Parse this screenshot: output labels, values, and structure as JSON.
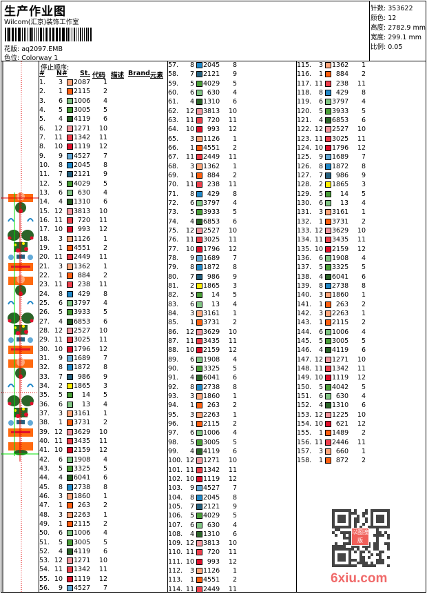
{
  "header": {
    "title": "生产作业图",
    "company": "Wilcom(汇京)装饰工作室",
    "pattern_label": "花版:",
    "pattern": "aq2097.EMB",
    "colorway_label": "色位:",
    "colorway": "Colorway 1"
  },
  "info": [
    {
      "label": "针数:",
      "value": "353622"
    },
    {
      "label": "颜色:",
      "value": "12"
    },
    {
      "label": "高度:",
      "value": "2782.9 mm"
    },
    {
      "label": "宽度:",
      "value": "299.1 mm"
    },
    {
      "label": "比例:",
      "value": "0.05"
    }
  ],
  "table": {
    "stop_order_label": "停止顺序:",
    "columns": [
      "#",
      "N#",
      "St.",
      "代码",
      "描述",
      "Brand",
      "元素"
    ]
  },
  "palette": {
    "1": "#ff5f0f",
    "2": "#ffee00",
    "3": "#ffa57a",
    "4": "#2b6428",
    "5": "#4a9e38",
    "6": "#80c483",
    "7": "#25607e",
    "8": "#2088c8",
    "9": "#62aad8",
    "10": "#e0102c",
    "11": "#ee3f4c",
    "12": "#f4949c"
  },
  "rows": [
    [
      "1.",
      3,
      "2087",
      1
    ],
    [
      "2.",
      1,
      "2115",
      2
    ],
    [
      "3.",
      6,
      "1006",
      4
    ],
    [
      "4.",
      5,
      "3005",
      5
    ],
    [
      "5.",
      4,
      "4119",
      6
    ],
    [
      "6.",
      12,
      "1271",
      10
    ],
    [
      "7.",
      11,
      "1342",
      11
    ],
    [
      "8.",
      10,
      "1119",
      12
    ],
    [
      "9.",
      9,
      "4527",
      7
    ],
    [
      "10.",
      8,
      "2045",
      8
    ],
    [
      "11.",
      7,
      "2121",
      9
    ],
    [
      "12.",
      5,
      "4029",
      5
    ],
    [
      "13.",
      6,
      "630",
      4
    ],
    [
      "14.",
      4,
      "1310",
      6
    ],
    [
      "15.",
      12,
      "3813",
      10
    ],
    [
      "16.",
      11,
      "720",
      11
    ],
    [
      "17.",
      10,
      "993",
      12
    ],
    [
      "18.",
      3,
      "1126",
      1
    ],
    [
      "19.",
      1,
      "4551",
      2
    ],
    [
      "20.",
      11,
      "2449",
      11
    ],
    [
      "21.",
      3,
      "1362",
      1
    ],
    [
      "22.",
      1,
      "884",
      2
    ],
    [
      "23.",
      11,
      "238",
      11
    ],
    [
      "24.",
      8,
      "429",
      8
    ],
    [
      "25.",
      6,
      "3797",
      4
    ],
    [
      "26.",
      5,
      "3933",
      5
    ],
    [
      "27.",
      4,
      "6853",
      6
    ],
    [
      "28.",
      12,
      "2527",
      10
    ],
    [
      "29.",
      11,
      "3025",
      11
    ],
    [
      "30.",
      10,
      "1796",
      12
    ],
    [
      "31.",
      9,
      "1689",
      7
    ],
    [
      "32.",
      8,
      "1872",
      8
    ],
    [
      "33.",
      7,
      "986",
      9
    ],
    [
      "34.",
      2,
      "1865",
      3
    ],
    [
      "35.",
      5,
      "14",
      5
    ],
    [
      "36.",
      6,
      "13",
      4
    ],
    [
      "37.",
      3,
      "3161",
      1
    ],
    [
      "38.",
      1,
      "3731",
      2
    ],
    [
      "39.",
      12,
      "3629",
      10
    ],
    [
      "40.",
      11,
      "3435",
      11
    ],
    [
      "41.",
      10,
      "2159",
      12
    ],
    [
      "42.",
      6,
      "1908",
      4
    ],
    [
      "43.",
      5,
      "3325",
      5
    ],
    [
      "44.",
      4,
      "6041",
      6
    ],
    [
      "45.",
      8,
      "2738",
      8
    ],
    [
      "46.",
      3,
      "1860",
      1
    ],
    [
      "47.",
      1,
      "263",
      2
    ],
    [
      "48.",
      3,
      "2263",
      1
    ],
    [
      "49.",
      1,
      "2115",
      2
    ],
    [
      "50.",
      6,
      "1006",
      4
    ],
    [
      "51.",
      5,
      "3005",
      5
    ],
    [
      "52.",
      4,
      "4119",
      6
    ],
    [
      "53.",
      12,
      "1271",
      10
    ],
    [
      "54.",
      11,
      "1342",
      11
    ],
    [
      "55.",
      10,
      "1119",
      12
    ],
    [
      "56.",
      9,
      "4527",
      7
    ],
    [
      "57.",
      8,
      "2045",
      8
    ],
    [
      "58.",
      7,
      "2121",
      9
    ],
    [
      "59.",
      5,
      "4029",
      5
    ],
    [
      "60.",
      6,
      "630",
      4
    ],
    [
      "61.",
      4,
      "1310",
      6
    ],
    [
      "62.",
      12,
      "3813",
      10
    ],
    [
      "63.",
      11,
      "720",
      11
    ],
    [
      "64.",
      10,
      "993",
      12
    ],
    [
      "65.",
      3,
      "1126",
      1
    ],
    [
      "66.",
      1,
      "4551",
      2
    ],
    [
      "67.",
      11,
      "2449",
      11
    ],
    [
      "68.",
      3,
      "1362",
      1
    ],
    [
      "69.",
      1,
      "884",
      2
    ],
    [
      "70.",
      11,
      "238",
      11
    ],
    [
      "71.",
      8,
      "429",
      8
    ],
    [
      "72.",
      6,
      "3797",
      4
    ],
    [
      "73.",
      5,
      "3933",
      5
    ],
    [
      "74.",
      4,
      "6853",
      6
    ],
    [
      "75.",
      12,
      "2527",
      10
    ],
    [
      "76.",
      11,
      "3025",
      11
    ],
    [
      "77.",
      10,
      "1796",
      12
    ],
    [
      "78.",
      9,
      "1689",
      7
    ],
    [
      "79.",
      8,
      "1872",
      8
    ],
    [
      "80.",
      7,
      "986",
      9
    ],
    [
      "81.",
      2,
      "1865",
      3
    ],
    [
      "82.",
      5,
      "14",
      5
    ],
    [
      "83.",
      6,
      "13",
      4
    ],
    [
      "84.",
      3,
      "3161",
      1
    ],
    [
      "85.",
      1,
      "3731",
      2
    ],
    [
      "86.",
      12,
      "3629",
      10
    ],
    [
      "87.",
      11,
      "3435",
      11
    ],
    [
      "88.",
      10,
      "2159",
      12
    ],
    [
      "89.",
      6,
      "1908",
      4
    ],
    [
      "90.",
      5,
      "3325",
      5
    ],
    [
      "91.",
      4,
      "6041",
      6
    ],
    [
      "92.",
      8,
      "2738",
      8
    ],
    [
      "93.",
      3,
      "1860",
      1
    ],
    [
      "94.",
      1,
      "263",
      2
    ],
    [
      "95.",
      3,
      "2263",
      1
    ],
    [
      "96.",
      1,
      "2115",
      2
    ],
    [
      "97.",
      6,
      "1006",
      4
    ],
    [
      "98.",
      5,
      "3005",
      5
    ],
    [
      "99.",
      4,
      "4119",
      6
    ],
    [
      "100.",
      12,
      "1271",
      10
    ],
    [
      "101.",
      11,
      "1342",
      11
    ],
    [
      "102.",
      10,
      "1119",
      12
    ],
    [
      "103.",
      9,
      "4527",
      7
    ],
    [
      "104.",
      8,
      "2045",
      8
    ],
    [
      "105.",
      7,
      "2121",
      9
    ],
    [
      "106.",
      5,
      "4029",
      5
    ],
    [
      "107.",
      6,
      "630",
      4
    ],
    [
      "108.",
      4,
      "1310",
      6
    ],
    [
      "109.",
      12,
      "3813",
      10
    ],
    [
      "110.",
      11,
      "720",
      11
    ],
    [
      "111.",
      10,
      "993",
      12
    ],
    [
      "112.",
      3,
      "1126",
      1
    ],
    [
      "113.",
      1,
      "4551",
      2
    ],
    [
      "114.",
      11,
      "2449",
      11
    ],
    [
      "115.",
      3,
      "1362",
      1
    ],
    [
      "116.",
      1,
      "884",
      2
    ],
    [
      "117.",
      11,
      "238",
      11
    ],
    [
      "118.",
      8,
      "429",
      8
    ],
    [
      "119.",
      6,
      "3797",
      4
    ],
    [
      "120.",
      5,
      "3933",
      5
    ],
    [
      "121.",
      4,
      "6853",
      6
    ],
    [
      "122.",
      12,
      "2527",
      10
    ],
    [
      "123.",
      11,
      "3025",
      11
    ],
    [
      "124.",
      10,
      "1796",
      12
    ],
    [
      "125.",
      9,
      "1689",
      7
    ],
    [
      "126.",
      8,
      "1872",
      8
    ],
    [
      "127.",
      7,
      "986",
      9
    ],
    [
      "128.",
      2,
      "1865",
      3
    ],
    [
      "129.",
      5,
      "14",
      5
    ],
    [
      "130.",
      6,
      "13",
      4
    ],
    [
      "131.",
      3,
      "3161",
      1
    ],
    [
      "132.",
      1,
      "3731",
      2
    ],
    [
      "133.",
      12,
      "3629",
      10
    ],
    [
      "134.",
      11,
      "3435",
      11
    ],
    [
      "135.",
      10,
      "2159",
      12
    ],
    [
      "136.",
      6,
      "1908",
      4
    ],
    [
      "137.",
      5,
      "3325",
      5
    ],
    [
      "138.",
      4,
      "6041",
      6
    ],
    [
      "139.",
      8,
      "2738",
      8
    ],
    [
      "140.",
      3,
      "1860",
      1
    ],
    [
      "141.",
      1,
      "263",
      2
    ],
    [
      "142.",
      3,
      "2263",
      1
    ],
    [
      "143.",
      1,
      "2115",
      2
    ],
    [
      "144.",
      6,
      "1006",
      4
    ],
    [
      "145.",
      5,
      "3005",
      5
    ],
    [
      "146.",
      4,
      "4119",
      6
    ],
    [
      "147.",
      12,
      "1271",
      10
    ],
    [
      "148.",
      11,
      "1342",
      11
    ],
    [
      "149.",
      10,
      "1119",
      12
    ],
    [
      "150.",
      5,
      "4042",
      5
    ],
    [
      "151.",
      6,
      "630",
      4
    ],
    [
      "152.",
      4,
      "1310",
      6
    ],
    [
      "153.",
      12,
      "1225",
      10
    ],
    [
      "154.",
      10,
      "621",
      12
    ],
    [
      "155.",
      1,
      "1489",
      2
    ],
    [
      "156.",
      11,
      "2446",
      11
    ],
    [
      "157.",
      3,
      "660",
      1
    ],
    [
      "158.",
      1,
      "872",
      2
    ]
  ],
  "watermark": {
    "text": "6xiu.com",
    "stamp": "以图搜版"
  }
}
